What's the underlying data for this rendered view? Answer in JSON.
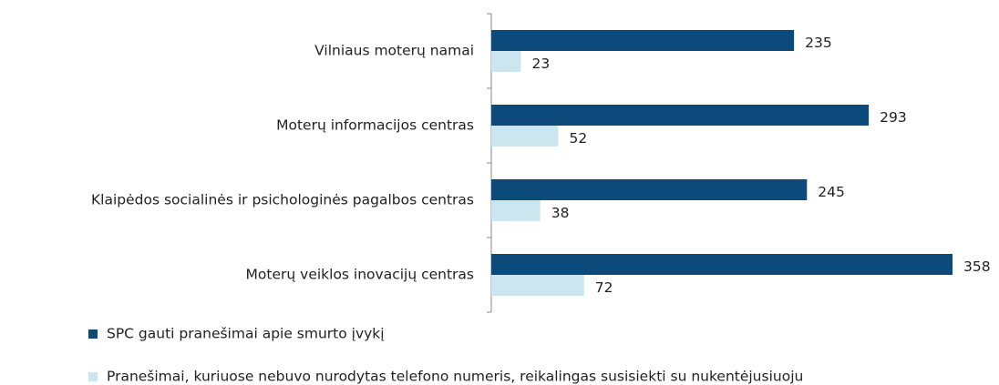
{
  "chart_data": {
    "type": "hbar",
    "categories": [
      "Vilniaus moterų namai",
      "Moterų informacijos centras",
      "Klaipėdos socialinės ir psichologinės pagalbos centras",
      "Moterų veiklos inovacijų centras"
    ],
    "series": [
      {
        "name": "SPC gauti pranešimai apie smurto įvykį",
        "color": "#0b4a7a",
        "values": [
          235,
          293,
          245,
          358
        ]
      },
      {
        "name": "Pranešimai, kuriuose nebuvo nurodytas telefono numeris, reikalingas susisiekti su nukentėjusiuoju",
        "color": "#cce6ef",
        "values": [
          23,
          52,
          38,
          72
        ]
      }
    ]
  }
}
